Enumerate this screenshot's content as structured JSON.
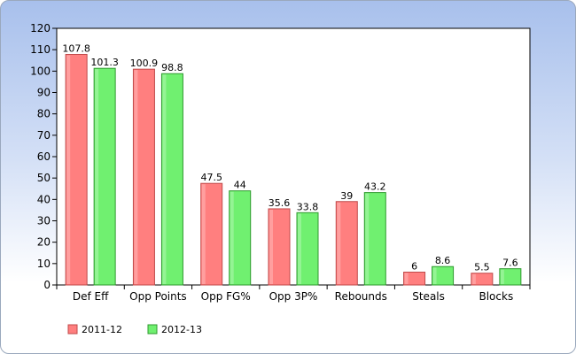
{
  "chart_data": {
    "type": "bar",
    "categories": [
      "Def Eff",
      "Opp Points",
      "Opp FG%",
      "Opp 3P%",
      "Rebounds",
      "Steals",
      "Blocks"
    ],
    "series": [
      {
        "name": "2011-12",
        "values": [
          107.8,
          100.9,
          47.5,
          35.6,
          39,
          6,
          5.5
        ],
        "color": "#ff7f7f",
        "stroke": "#c04a4a"
      },
      {
        "name": "2012-13",
        "values": [
          101.3,
          98.8,
          44,
          33.8,
          43.2,
          8.6,
          7.6
        ],
        "color": "#70f070",
        "stroke": "#2f9a2f"
      }
    ],
    "ylim": [
      0,
      120
    ],
    "yticks": [
      0,
      10,
      20,
      30,
      40,
      50,
      60,
      70,
      80,
      90,
      100,
      110,
      120
    ],
    "grid": false,
    "legend": "bottom-left",
    "title": "",
    "xlabel": "",
    "ylabel": ""
  }
}
